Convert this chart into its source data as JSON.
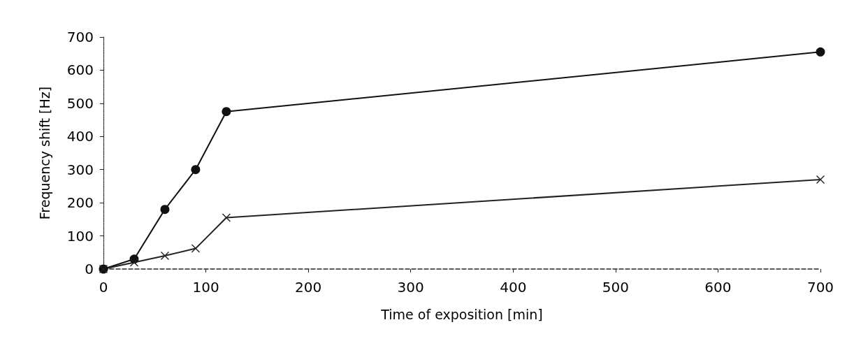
{
  "chart_data": {
    "type": "line",
    "xlabel": "Time of exposition [min]",
    "ylabel": "Frequency shift [Hz]",
    "xlim": [
      0,
      700
    ],
    "xticks": [
      0,
      100,
      200,
      300,
      400,
      500,
      600,
      700
    ],
    "ylim": [
      0,
      700
    ],
    "yticks": [
      0,
      100,
      200,
      300,
      400,
      500,
      600,
      700
    ],
    "grid": false,
    "line_style": "solid",
    "series": [
      {
        "color": "#111111",
        "marker": "circle",
        "x": [
          0,
          30,
          60,
          90,
          120,
          700
        ],
        "values": [
          0,
          30,
          180,
          300,
          475,
          655
        ]
      },
      {
        "color": "#222222",
        "marker": "cross",
        "x": [
          0,
          30,
          60,
          90,
          120,
          700
        ],
        "values": [
          0,
          20,
          40,
          62,
          155,
          270
        ]
      }
    ]
  }
}
